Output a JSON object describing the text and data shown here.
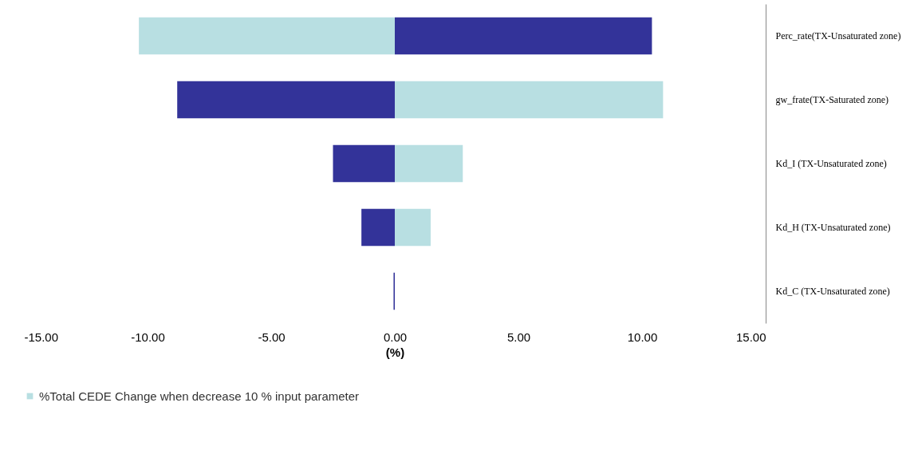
{
  "chart_data": {
    "type": "bar",
    "orientation": "horizontal",
    "xlabel": "(%)",
    "categories": [
      "Perc_rate(TX-Unsaturated zone)",
      "gw_frate(TX-Saturated zone)",
      "Kd_I (TX-Unsaturated zone)",
      "Kd_H (TX-Unsaturated zone)",
      "Kd_C (TX-Unsaturated zone)"
    ],
    "series": [
      {
        "name": "%Total CEDE Change when decrease 10 % input parameter",
        "color": "#b8dfe2",
        "values": [
          -10.35,
          10.85,
          2.75,
          1.45,
          null
        ]
      },
      {
        "color": "#333399",
        "values": [
          10.4,
          -8.8,
          -2.5,
          -1.35,
          -0.05
        ]
      }
    ],
    "xlim": [
      -15,
      15
    ],
    "xticks": [
      {
        "value": -15,
        "label": "-15.00"
      },
      {
        "value": -10,
        "label": "-10.00"
      },
      {
        "value": -5,
        "label": "-5.00"
      },
      {
        "value": 0,
        "label": "0.00"
      },
      {
        "value": 5,
        "label": "5.00"
      },
      {
        "value": 10,
        "label": "10.00"
      },
      {
        "value": 15,
        "label": "15.00"
      }
    ],
    "grid": false,
    "legend": "bottom",
    "stacked": true
  }
}
